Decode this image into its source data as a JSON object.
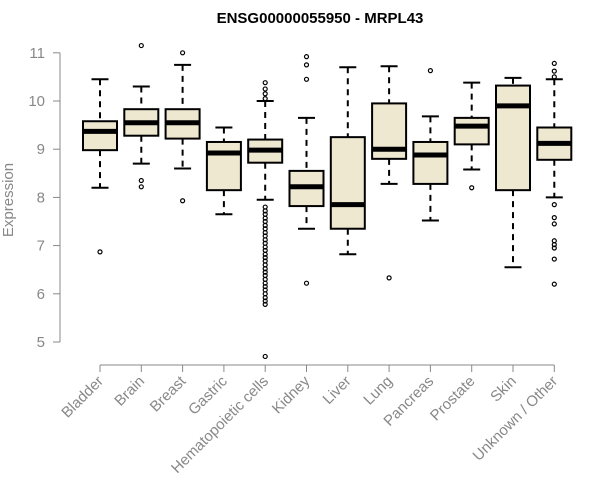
{
  "chart_data": {
    "type": "boxplot",
    "title": "ENSG00000055950 - MRPL43",
    "ylabel": "Expression",
    "xlabel": "",
    "ylim": [
      4.5,
      11.2
    ],
    "yticks": [
      5,
      6,
      7,
      8,
      9,
      10,
      11
    ],
    "box_fill": "#efe8d0",
    "categories": [
      "Bladder",
      "Brain",
      "Breast",
      "Gastric",
      "Hematopoietic cells",
      "Kidney",
      "Liver",
      "Lung",
      "Pancreas",
      "Prostate",
      "Skin",
      "Unknown / Other"
    ],
    "series": [
      {
        "name": "Bladder",
        "whisker_low": 8.2,
        "q1": 8.98,
        "median": 9.37,
        "q3": 9.58,
        "whisker_high": 10.45,
        "outliers": [
          6.87
        ]
      },
      {
        "name": "Brain",
        "whisker_low": 8.7,
        "q1": 9.28,
        "median": 9.55,
        "q3": 9.83,
        "whisker_high": 10.3,
        "outliers": [
          8.35,
          8.22,
          11.15
        ]
      },
      {
        "name": "Breast",
        "whisker_low": 8.6,
        "q1": 9.22,
        "median": 9.55,
        "q3": 9.83,
        "whisker_high": 10.75,
        "outliers": [
          7.93,
          11.0
        ]
      },
      {
        "name": "Gastric",
        "whisker_low": 7.65,
        "q1": 8.15,
        "median": 8.92,
        "q3": 9.15,
        "whisker_high": 9.45,
        "outliers": []
      },
      {
        "name": "Hematopoietic cells",
        "whisker_low": 7.95,
        "q1": 8.72,
        "median": 8.98,
        "q3": 9.2,
        "whisker_high": 10.0,
        "outliers": [
          4.7,
          5.78,
          5.85,
          5.92,
          6.0,
          6.08,
          6.15,
          6.22,
          6.3,
          6.38,
          6.45,
          6.52,
          6.6,
          6.68,
          6.75,
          6.82,
          6.9,
          6.97,
          7.05,
          7.12,
          7.2,
          7.27,
          7.35,
          7.42,
          7.5,
          7.57,
          7.65,
          7.72,
          7.8,
          10.05,
          10.15,
          10.25,
          10.38
        ]
      },
      {
        "name": "Kidney",
        "whisker_low": 7.35,
        "q1": 7.82,
        "median": 8.22,
        "q3": 8.55,
        "whisker_high": 9.65,
        "outliers": [
          6.22,
          10.45,
          10.75,
          10.92
        ]
      },
      {
        "name": "Liver",
        "whisker_low": 6.82,
        "q1": 7.35,
        "median": 7.85,
        "q3": 9.25,
        "whisker_high": 10.7,
        "outliers": []
      },
      {
        "name": "Lung",
        "whisker_low": 8.28,
        "q1": 8.8,
        "median": 9.0,
        "q3": 9.95,
        "whisker_high": 10.72,
        "outliers": [
          6.33
        ]
      },
      {
        "name": "Pancreas",
        "whisker_low": 7.52,
        "q1": 8.28,
        "median": 8.88,
        "q3": 9.15,
        "whisker_high": 9.68,
        "outliers": [
          10.63
        ]
      },
      {
        "name": "Prostate",
        "whisker_low": 8.58,
        "q1": 9.1,
        "median": 9.48,
        "q3": 9.65,
        "whisker_high": 10.38,
        "outliers": [
          8.2
        ]
      },
      {
        "name": "Skin",
        "whisker_low": 6.55,
        "q1": 8.15,
        "median": 9.9,
        "q3": 10.32,
        "whisker_high": 10.48,
        "outliers": []
      },
      {
        "name": "Unknown / Other",
        "whisker_low": 8.0,
        "q1": 8.78,
        "median": 9.12,
        "q3": 9.45,
        "whisker_high": 10.45,
        "outliers": [
          6.2,
          6.72,
          6.95,
          7.02,
          7.1,
          7.45,
          7.58,
          7.85,
          10.5,
          10.62,
          10.78
        ]
      }
    ]
  }
}
